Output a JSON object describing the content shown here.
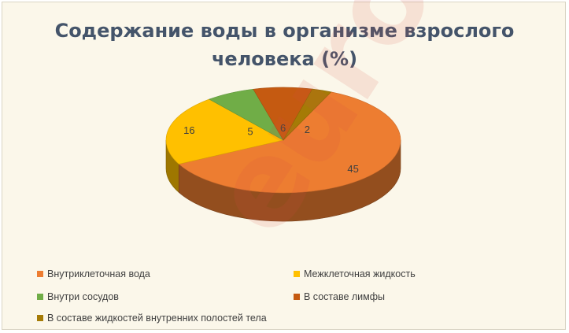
{
  "chart_data": {
    "type": "pie",
    "title_lines": [
      "Содержание воды в организме взрослого",
      "человека (%)"
    ],
    "series": [
      {
        "name": "Внутриклеточная вода",
        "value": 45,
        "color": "#ED7D31"
      },
      {
        "name": "Межклеточная жидкость",
        "value": 16,
        "color": "#FFC000"
      },
      {
        "name": "Внутри сосудов",
        "value": 5,
        "color": "#70AD47"
      },
      {
        "name": "В составе лимфы",
        "value": 6,
        "color": "#C55A11"
      },
      {
        "name": "В составе жидкостей внутренних полостей тела",
        "value": 2,
        "color": "#A57B06"
      }
    ],
    "legend_position": "bottom",
    "three_d": true
  },
  "watermark": "euroki"
}
